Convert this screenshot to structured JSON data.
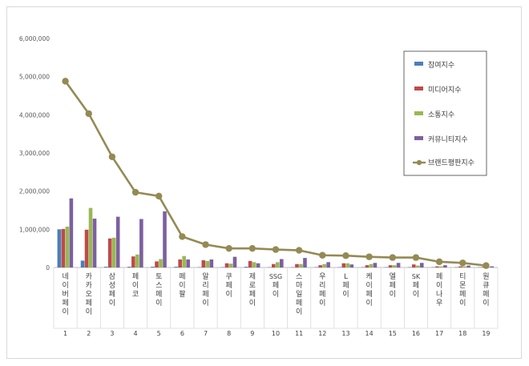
{
  "chart_data": {
    "type": "bar",
    "index_labels": [
      "1",
      "2",
      "3",
      "4",
      "5",
      "6",
      "7",
      "8",
      "9",
      "10",
      "11",
      "12",
      "13",
      "14",
      "15",
      "16",
      "17",
      "18",
      "19"
    ],
    "categories": [
      "네이버페이",
      "카카오페이",
      "삼성페이",
      "페이코",
      "토스페이",
      "페이팔",
      "알리페이",
      "쿠페이",
      "제로페이",
      "SSG페이",
      "스마일페이",
      "우리페이",
      "L페이",
      "케이페이",
      "엘페이",
      "SK페이",
      "페이나우",
      "티몬페이",
      "원큐페이"
    ],
    "series": [
      {
        "name": "참여지수",
        "color": "#4a7ebb",
        "values": [
          1000000,
          180000,
          20000,
          20000,
          20000,
          20000,
          10000,
          10000,
          20000,
          10000,
          10000,
          10000,
          10000,
          10000,
          10000,
          10000,
          10000,
          10000,
          10000
        ]
      },
      {
        "name": "미디어지수",
        "color": "#be4b48",
        "values": [
          1010000,
          990000,
          760000,
          290000,
          160000,
          210000,
          190000,
          110000,
          170000,
          90000,
          90000,
          60000,
          110000,
          60000,
          60000,
          80000,
          30000,
          30000,
          20000
        ]
      },
      {
        "name": "소통지수",
        "color": "#98b954",
        "values": [
          1070000,
          1560000,
          780000,
          340000,
          220000,
          300000,
          170000,
          100000,
          140000,
          140000,
          90000,
          90000,
          110000,
          90000,
          60000,
          50000,
          30000,
          30000,
          20000
        ]
      },
      {
        "name": "커뮤니티지수",
        "color": "#7d60a0",
        "values": [
          1810000,
          1280000,
          1330000,
          1270000,
          1470000,
          210000,
          210000,
          280000,
          110000,
          220000,
          250000,
          140000,
          80000,
          120000,
          120000,
          120000,
          60000,
          50000,
          30000
        ]
      }
    ],
    "line_series": {
      "name": "브랜드평판지수",
      "color": "#948a54",
      "values": [
        4880000,
        4030000,
        2900000,
        1970000,
        1870000,
        810000,
        600000,
        500000,
        500000,
        470000,
        450000,
        320000,
        310000,
        280000,
        260000,
        260000,
        150000,
        120000,
        50000
      ]
    },
    "y_ticks": [
      "0",
      "1,000,000",
      "2,000,000",
      "3,000,000",
      "4,000,000",
      "5,000,000",
      "6,000,000"
    ],
    "ylim": [
      0,
      6000000
    ],
    "legend_position": "right",
    "grid": false
  }
}
